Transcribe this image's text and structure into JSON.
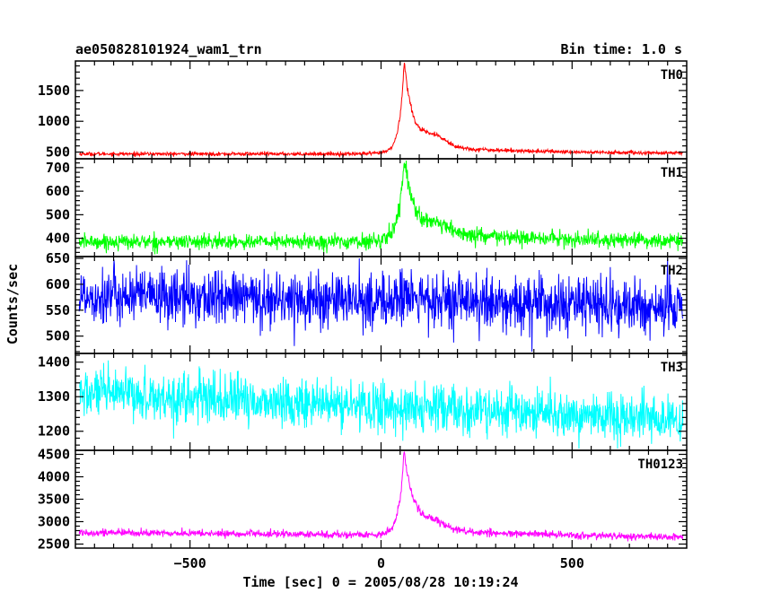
{
  "header": {
    "title": "ae050828101924_wam1_trn",
    "bin_time": "Bin time: 1.0 s"
  },
  "chart_data": {
    "type": "line",
    "title": "ae050828101924_wam1_trn",
    "xlabel": "Time [sec] 0 = 2005/08/28 10:19:24",
    "ylabel": "Counts/sec",
    "xlim": [
      -800,
      800
    ],
    "xticks": [
      -500,
      0,
      500
    ],
    "xtick_labels": [
      "−500",
      "0",
      "500"
    ],
    "panels": [
      {
        "name": "TH0",
        "color": "#ff0000",
        "ylim": [
          420,
          1950
        ],
        "yticks": [
          500,
          1000,
          1500
        ],
        "ytick_labels": [
          "500",
          "1000",
          "1500"
        ],
        "baseline": 470,
        "noise": 15,
        "peak_t": 60,
        "peak_amp": 1400,
        "rise_tau": 12,
        "decay_tau": 22,
        "shoulder_t": 140,
        "shoulder_amp": 170,
        "shoulder_w": 45,
        "tail_amp": 140,
        "tail_tau": 300,
        "key_points": [
          [
            -790,
            470
          ],
          [
            -400,
            475
          ],
          [
            0,
            520
          ],
          [
            40,
            950
          ],
          [
            60,
            1900
          ],
          [
            90,
            1050
          ],
          [
            140,
            720
          ],
          [
            200,
            620
          ],
          [
            400,
            560
          ],
          [
            790,
            480
          ]
        ]
      },
      {
        "name": "TH1",
        "color": "#00ff00",
        "ylim": [
          330,
          730
        ],
        "yticks": [
          400,
          500,
          600,
          700
        ],
        "ytick_labels": [
          "400",
          "500",
          "600",
          "700"
        ],
        "baseline": 385,
        "noise": 16,
        "peak_t": 60,
        "peak_amp": 320,
        "rise_tau": 15,
        "decay_tau": 25,
        "shoulder_t": 150,
        "shoulder_amp": 30,
        "shoulder_w": 50,
        "tail_amp": 45,
        "tail_tau": 300,
        "key_points": [
          [
            -790,
            385
          ],
          [
            -400,
            385
          ],
          [
            0,
            400
          ],
          [
            40,
            520
          ],
          [
            60,
            710
          ],
          [
            100,
            490
          ],
          [
            200,
            440
          ],
          [
            400,
            410
          ],
          [
            790,
            375
          ]
        ]
      },
      {
        "name": "TH2",
        "color": "#0000ff",
        "ylim": [
          470,
          650
        ],
        "yticks": [
          500,
          550,
          600,
          650
        ],
        "ytick_labels": [
          "500",
          "550",
          "600",
          "650"
        ],
        "baseline": 567,
        "noise": 27,
        "peak_t": 60,
        "peak_amp": 15,
        "rise_tau": 15,
        "decay_tau": 30,
        "shoulder_t": 0,
        "shoulder_amp": 0,
        "shoulder_w": 50,
        "tail_amp": 0,
        "tail_tau": 300,
        "trend": -12,
        "key_points": [
          [
            -790,
            570
          ],
          [
            0,
            567
          ],
          [
            60,
            585
          ],
          [
            790,
            555
          ]
        ]
      },
      {
        "name": "TH3",
        "color": "#00ffff",
        "ylim": [
          1150,
          1420
        ],
        "yticks": [
          1200,
          1300,
          1400
        ],
        "ytick_labels": [
          "1200",
          "1300",
          "1400"
        ],
        "baseline": 1270,
        "noise": 35,
        "peak_t": 60,
        "peak_amp": 0,
        "rise_tau": 15,
        "decay_tau": 30,
        "shoulder_t": 0,
        "shoulder_amp": 0,
        "shoulder_w": 50,
        "tail_amp": 0,
        "tail_tau": 300,
        "trend": -40,
        "key_points": [
          [
            -790,
            1285
          ],
          [
            0,
            1270
          ],
          [
            790,
            1220
          ]
        ]
      },
      {
        "name": "TH0123",
        "color": "#ff00ff",
        "ylim": [
          2450,
          4550
        ],
        "yticks": [
          2500,
          3000,
          3500,
          4000,
          4500
        ],
        "ytick_labels": [
          "2500",
          "3000",
          "3500",
          "4000",
          "4500"
        ],
        "baseline": 2700,
        "noise": 40,
        "peak_t": 60,
        "peak_amp": 1780,
        "rise_tau": 13,
        "decay_tau": 24,
        "shoulder_t": 140,
        "shoulder_amp": 180,
        "shoulder_w": 50,
        "tail_amp": 140,
        "tail_tau": 320,
        "trend": -60,
        "key_points": [
          [
            -790,
            2720
          ],
          [
            -400,
            2710
          ],
          [
            0,
            2750
          ],
          [
            40,
            3300
          ],
          [
            60,
            4500
          ],
          [
            100,
            3200
          ],
          [
            200,
            2950
          ],
          [
            400,
            2780
          ],
          [
            790,
            2640
          ]
        ]
      }
    ]
  }
}
